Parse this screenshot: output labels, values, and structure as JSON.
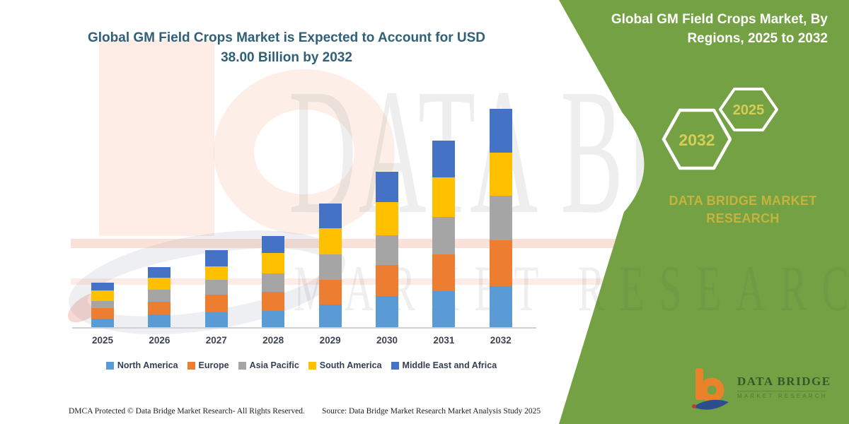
{
  "left_panel": {
    "title_line1": "Global GM Field Crops Market is Expected to Account for USD",
    "title_line2": "38.00 Billion by 2032"
  },
  "right_panel": {
    "background_color": "#74A143",
    "title_line1": "Global GM Field Crops Market, By",
    "title_line2": "Regions, 2025 to 2032",
    "hexagons": [
      {
        "label": "2032"
      },
      {
        "label": "2025"
      }
    ],
    "hexagon_label_color": "#d6cd55",
    "brand_line1": "DATA BRIDGE MARKET",
    "brand_line2": "RESEARCH",
    "brand_color": "#c4b43e"
  },
  "logo": {
    "brand": "DATA BRIDGE",
    "tagline": "MARKET RESEARCH"
  },
  "watermark": {
    "line1": "DATA BRIDGE",
    "line2": "MARKET RESEARCH"
  },
  "footer": {
    "dmca": "DMCA Protected © Data Bridge Market Research-  All Rights Reserved.",
    "source": "Source: Data Bridge Market Research  Market Analysis Study 2025"
  },
  "chart_data": {
    "type": "bar",
    "stacked": true,
    "title": "Global GM Field Crops Market is Expected to Account for USD 38.00 Billion by 2032",
    "unit": "USD Billion",
    "categories": [
      "2025",
      "2026",
      "2027",
      "2028",
      "2029",
      "2030",
      "2031",
      "2032"
    ],
    "series": [
      {
        "name": "North America",
        "color": "#5B9BD5",
        "values": [
          1.6,
          2.3,
          2.7,
          2.9,
          4.1,
          5.5,
          6.4,
          7.3
        ]
      },
      {
        "name": "Europe",
        "color": "#ED7D31",
        "values": [
          1.8,
          2.2,
          3.1,
          3.3,
          4.3,
          5.4,
          6.4,
          7.9
        ]
      },
      {
        "name": "Asia Pacific",
        "color": "#A5A5A5",
        "values": [
          1.3,
          2.1,
          2.6,
          3.3,
          4.4,
          5.2,
          6.5,
          7.8
        ]
      },
      {
        "name": "South America",
        "color": "#FFC000",
        "values": [
          1.8,
          2.1,
          2.3,
          3.5,
          4.5,
          5.8,
          6.8,
          7.4
        ]
      },
      {
        "name": "Middle East and Africa",
        "color": "#4472C4",
        "values": [
          1.4,
          1.9,
          2.8,
          3.0,
          4.3,
          5.2,
          6.4,
          7.6
        ]
      }
    ],
    "totals": [
      7.9,
      10.6,
      13.5,
      16.0,
      21.6,
      27.1,
      32.5,
      38.0
    ],
    "ylim": [
      0,
      38
    ],
    "xlabel": "",
    "ylabel": "",
    "gridlines": false,
    "y_axis_visible": false,
    "legend_position": "bottom"
  }
}
